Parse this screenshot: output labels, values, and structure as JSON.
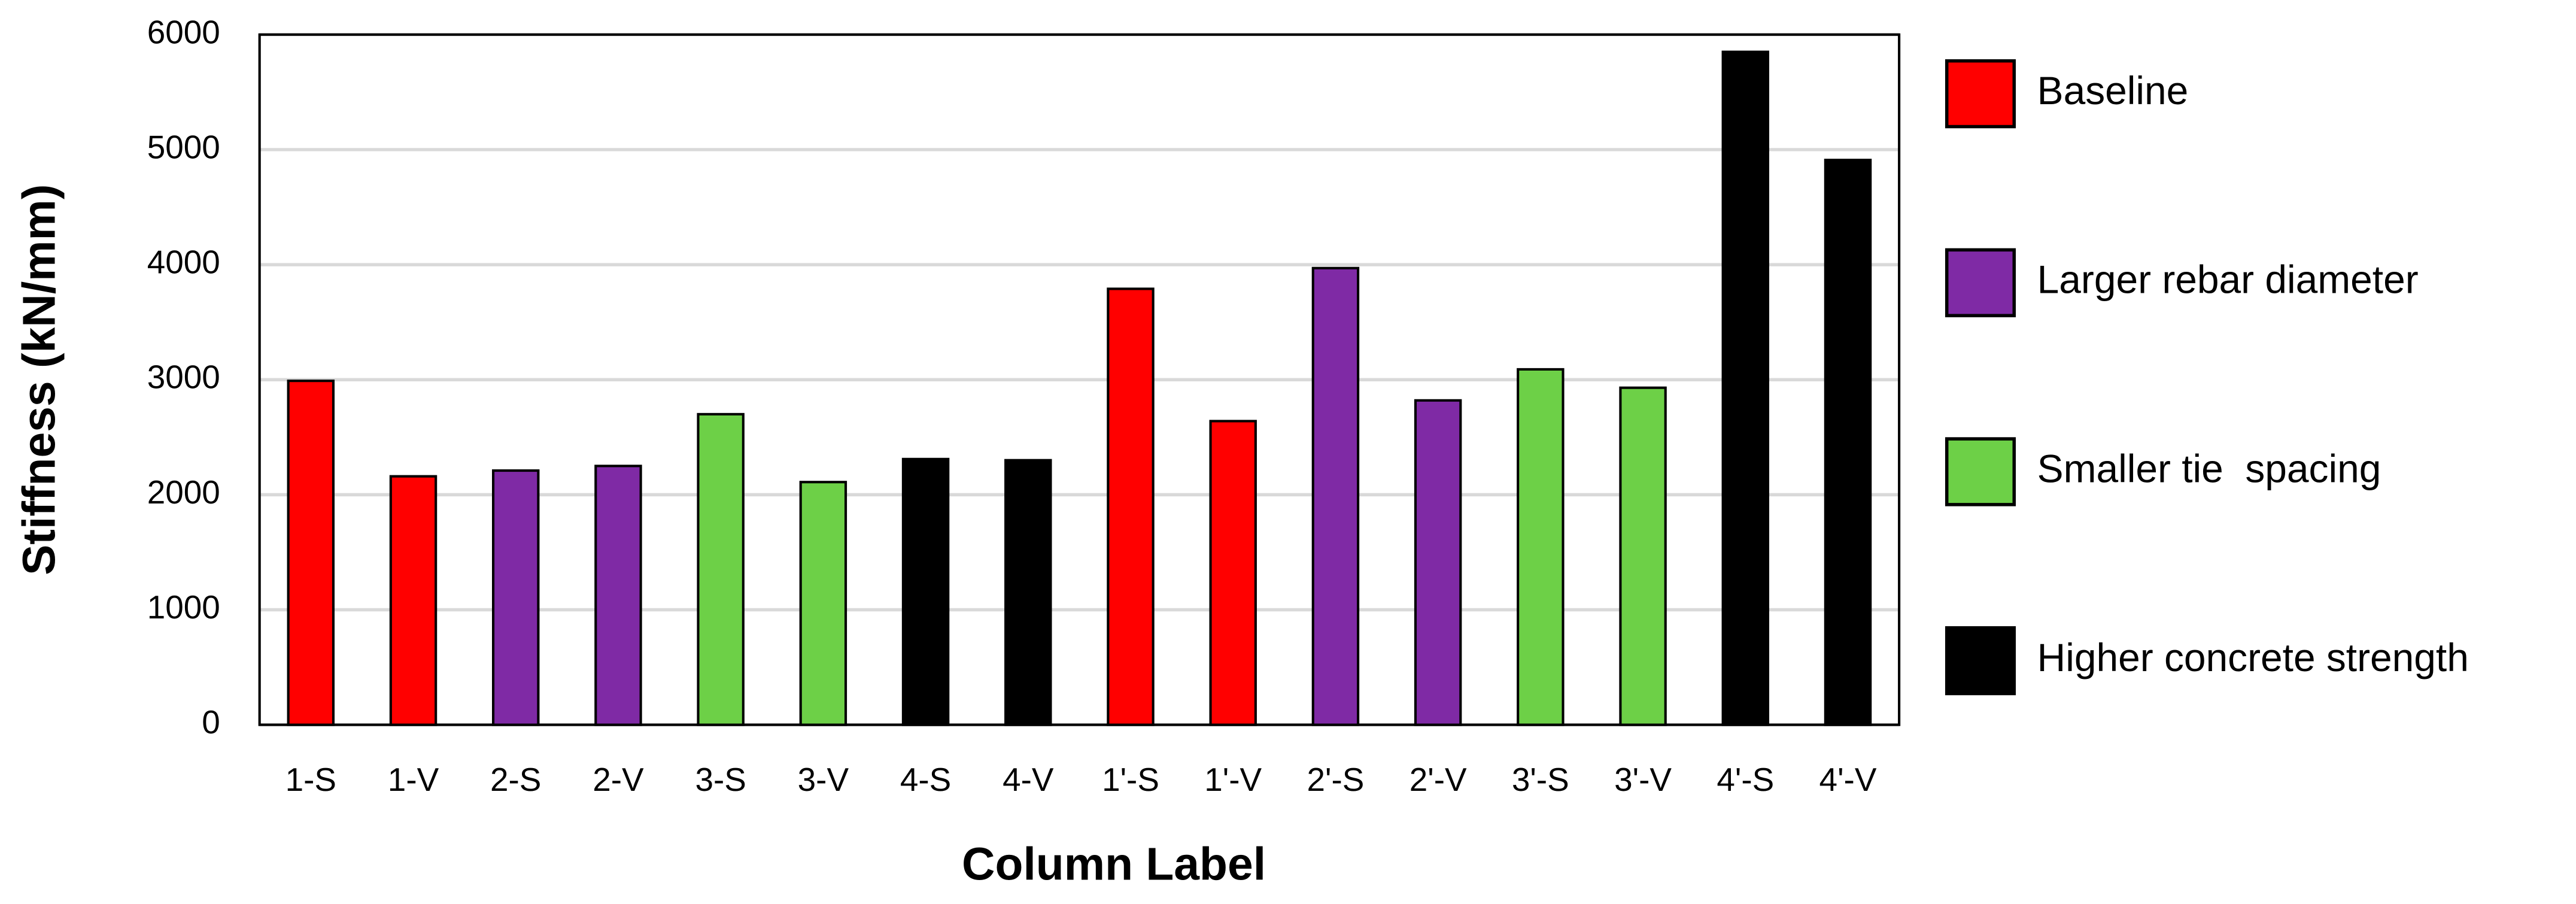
{
  "chart_data": {
    "type": "bar",
    "x_label": "Column Label",
    "y_label": "Stiffness (kN/mm)",
    "categories": [
      "1-S",
      "1-V",
      "2-S",
      "2-V",
      "3-S",
      "3-V",
      "4-S",
      "4-V",
      "1'-S",
      "1'-V",
      "2'-S",
      "2'-V",
      "3'-S",
      "3'-V",
      "4'-S",
      "4'-V"
    ],
    "series": [
      {
        "name": "Baseline",
        "color": "#ff0000",
        "values": [
          2990,
          2160,
          null,
          null,
          null,
          null,
          null,
          null,
          3790,
          2640,
          null,
          null,
          null,
          null,
          null,
          null
        ]
      },
      {
        "name": "Larger rebar diameter",
        "color": "#7f2aa5",
        "values": [
          null,
          null,
          2210,
          2250,
          null,
          null,
          null,
          null,
          null,
          null,
          3970,
          2820,
          null,
          null,
          null,
          null
        ]
      },
      {
        "name": "Smaller tie  spacing",
        "color": "#6dd047",
        "values": [
          null,
          null,
          null,
          null,
          2700,
          2110,
          null,
          null,
          null,
          null,
          null,
          null,
          3090,
          2930,
          null,
          null
        ]
      },
      {
        "name": "Higher concrete strength",
        "color": "#000000",
        "values": [
          null,
          null,
          null,
          null,
          null,
          null,
          2310,
          2300,
          null,
          null,
          null,
          null,
          null,
          null,
          5850,
          4910
        ]
      }
    ],
    "ylim": [
      0,
      6000
    ],
    "yticks": [
      0,
      1000,
      2000,
      3000,
      4000,
      5000,
      6000
    ],
    "grid": true,
    "legend": "right"
  }
}
